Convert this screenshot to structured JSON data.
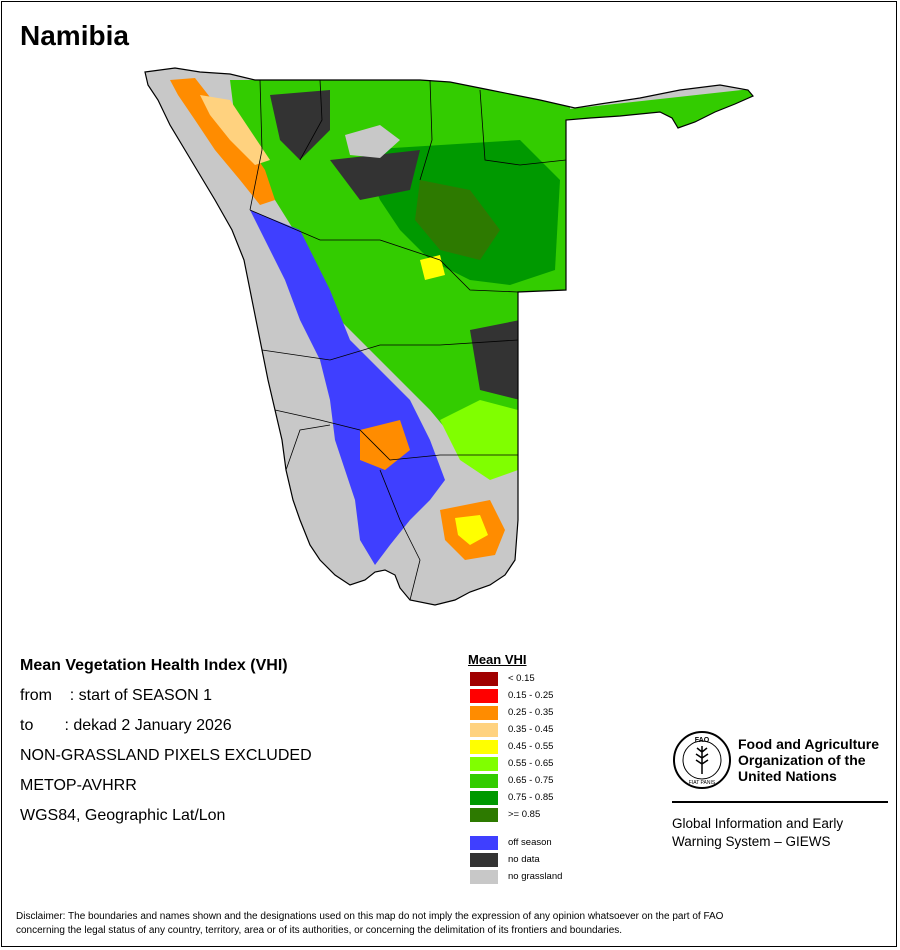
{
  "map_title": "Namibia",
  "info": {
    "title": "Mean Vegetation Health Index (VHI)",
    "from_line": "from    : start of SEASON 1",
    "to_line": "to       : dekad 2 January 2026",
    "line3": "NON-GRASSLAND PIXELS EXCLUDED",
    "line4": "METOP-AVHRR",
    "line5": "WGS84, Geographic Lat/Lon"
  },
  "legend": {
    "title": "Mean VHI",
    "classes": [
      {
        "label": "< 0.15",
        "color": "#a00000"
      },
      {
        "label": "0.15 - 0.25",
        "color": "#ff0000"
      },
      {
        "label": "0.25 - 0.35",
        "color": "#ff8c00"
      },
      {
        "label": "0.35 - 0.45",
        "color": "#ffd27f"
      },
      {
        "label": "0.45 - 0.55",
        "color": "#ffff00"
      },
      {
        "label": "0.55 - 0.65",
        "color": "#80ff00"
      },
      {
        "label": "0.65 - 0.75",
        "color": "#33cc00"
      },
      {
        "label": "0.75 - 0.85",
        "color": "#009900"
      },
      {
        "label": ">= 0.85",
        "color": "#2d7a00"
      }
    ],
    "extra": [
      {
        "label": "off season",
        "color": "#3f3fff"
      },
      {
        "label": "no data",
        "color": "#333333"
      },
      {
        "label": "no grassland",
        "color": "#c8c8c8"
      }
    ]
  },
  "org": {
    "name_line1": "Food and Agriculture",
    "name_line2": "Organization of the",
    "name_line3": "United Nations",
    "logo_text": "FAO",
    "logo_ring_text": "FIAT PANIS",
    "system_line1": "Global Information and Early",
    "system_line2": "Warning System – GIEWS"
  },
  "disclaimer_line1": "Disclaimer: The boundaries and names shown and the designations used on this map do not imply the expression of any opinion whatsoever on the part of FAO",
  "disclaimer_line2": "concerning the legal status of any country, territory, area or of its authorities, or concerning the delimitation of its frontiers and boundaries."
}
